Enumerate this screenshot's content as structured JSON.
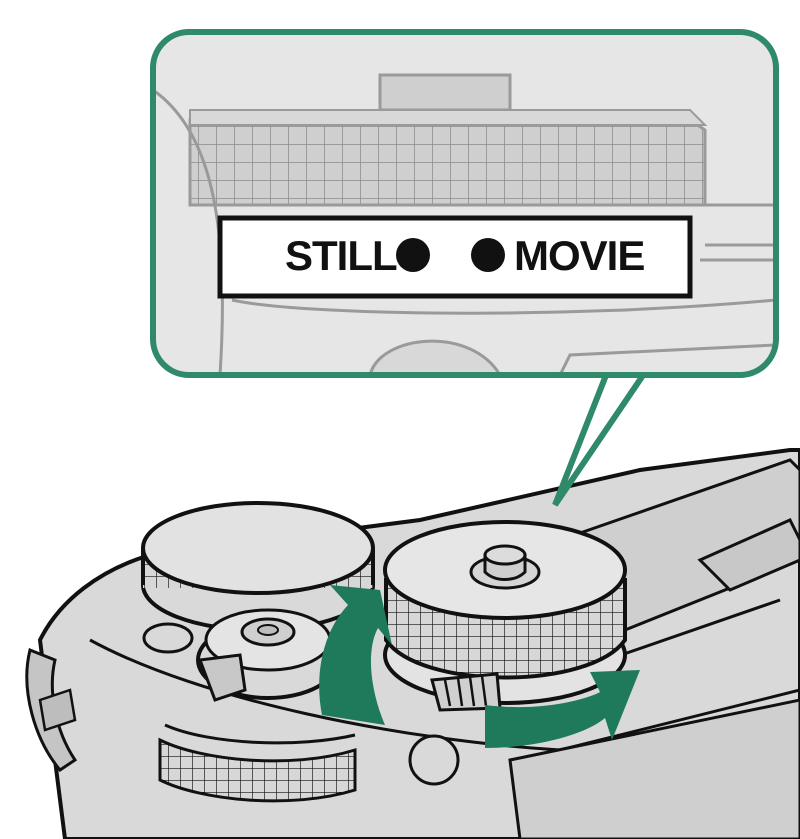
{
  "selector": {
    "still_label": "STILL",
    "movie_label": "MOVIE"
  },
  "colors": {
    "accent": "#2e8a68",
    "arrow": "#1f7a5b",
    "body_gray": "#d9d9d9",
    "outline": "#111111",
    "callout_bg": "#e6e6e6"
  },
  "icons": {
    "rotate_left": "rotate-arrow-counterclockwise",
    "rotate_right": "rotate-arrow-clockwise"
  }
}
